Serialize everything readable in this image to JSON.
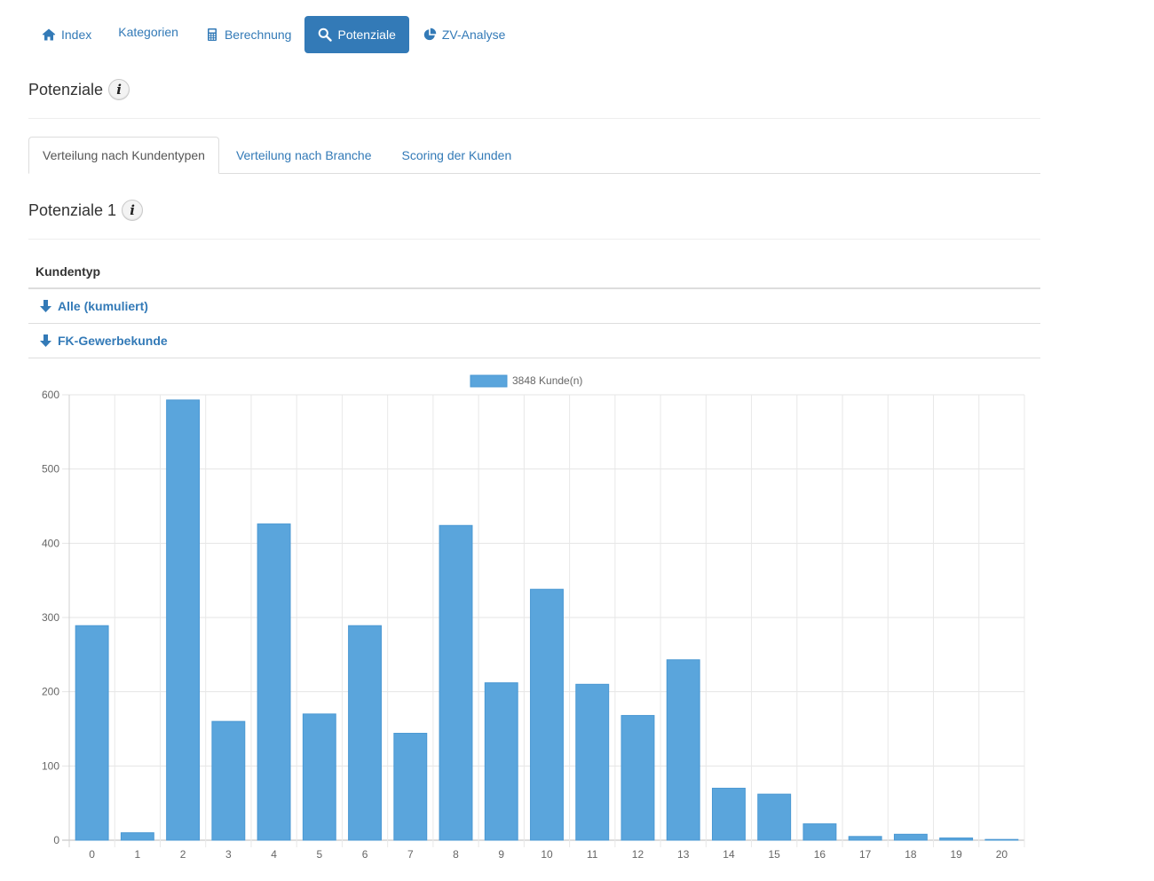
{
  "nav": {
    "items": [
      {
        "label": "Index",
        "icon": "home-icon"
      },
      {
        "label": "Kategorien",
        "icon": ""
      },
      {
        "label": "Berechnung",
        "icon": "calculator-icon"
      },
      {
        "label": "Potenziale",
        "icon": "search-icon",
        "active": true
      },
      {
        "label": "ZV-Analyse",
        "icon": "pie-chart-icon"
      }
    ]
  },
  "page": {
    "title": "Potenziale"
  },
  "tabs": [
    {
      "label": "Verteilung nach Kundentypen",
      "active": true
    },
    {
      "label": "Verteilung nach Branche"
    },
    {
      "label": "Scoring der Kunden"
    }
  ],
  "section": {
    "title": "Potenziale 1"
  },
  "table": {
    "header": "Kundentyp",
    "rows": [
      {
        "label": "Alle (kumuliert)",
        "icon": "arrow-down-icon"
      },
      {
        "label": "FK-Gewerbekunde",
        "icon": "arrow-down-icon"
      }
    ]
  },
  "colors": {
    "accent": "#337ab7",
    "bar": "#5aa5dc"
  },
  "chart_data": {
    "type": "bar",
    "categories": [
      "0",
      "1",
      "2",
      "3",
      "4",
      "5",
      "6",
      "7",
      "8",
      "9",
      "10",
      "11",
      "12",
      "13",
      "14",
      "15",
      "16",
      "17",
      "18",
      "19",
      "20"
    ],
    "series": [
      {
        "name": "3848 Kunde(n)",
        "values": [
          289,
          10,
          593,
          160,
          426,
          170,
          289,
          144,
          424,
          212,
          338,
          210,
          168,
          243,
          70,
          62,
          22,
          5,
          8,
          3,
          1
        ]
      }
    ],
    "yticks": [
      0,
      100,
      200,
      300,
      400,
      500,
      600
    ],
    "ylim": [
      0,
      600
    ],
    "grid": true,
    "legend": "top"
  }
}
